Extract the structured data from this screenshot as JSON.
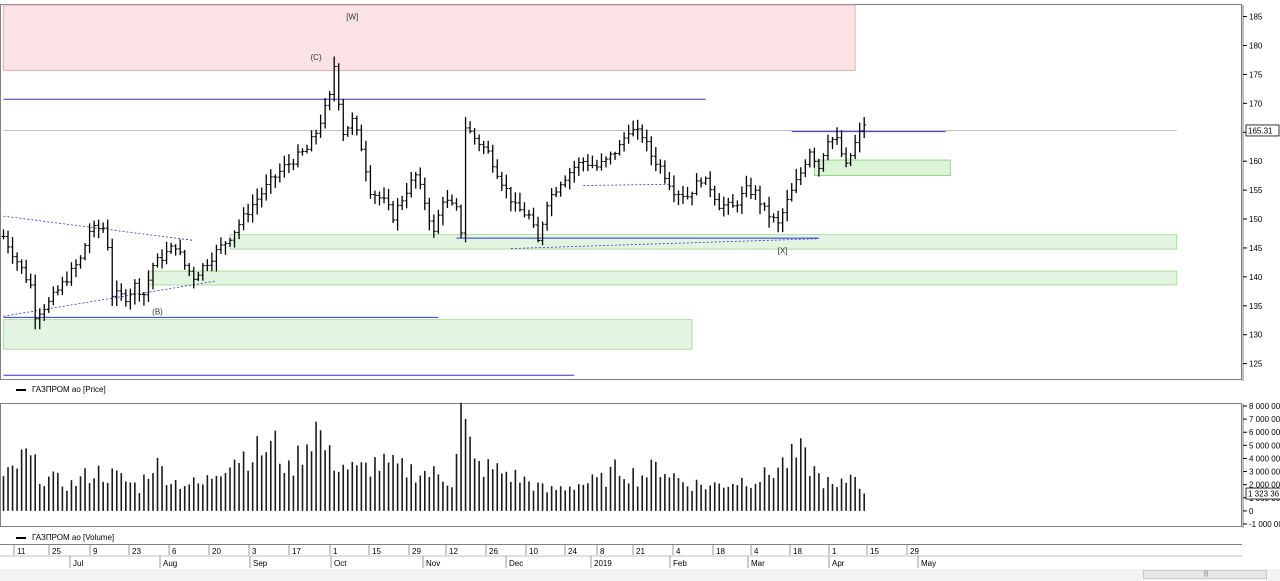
{
  "chart_data": [
    {
      "type": "ohlc",
      "series_name": "ГАЗПРОМ ао [Price]",
      "last_price_label": "165.31",
      "last_price": 165.31,
      "ylim": [
        122,
        187
      ],
      "y_ticks": [
        "185",
        "180",
        "175",
        "170",
        "165",
        "160",
        "155",
        "150",
        "145",
        "140",
        "135",
        "130",
        "125"
      ],
      "annotations": [
        {
          "label": "[W]",
          "bar": 77,
          "y": 184.5
        },
        {
          "label": "(C)",
          "bar": 69,
          "y": 177.5
        },
        {
          "label": "(B)",
          "bar": 34,
          "y": 133.5
        },
        {
          "label": "[X]",
          "bar": 172,
          "y": 144.0
        }
      ],
      "zones": [
        {
          "from_bar": 0,
          "to_bar": 188,
          "y1": 175.7,
          "y2": 187,
          "color": "#fbe3e5",
          "border": "#e39aa2"
        },
        {
          "from_bar": 50,
          "to_bar": 259,
          "y1": 144.8,
          "y2": 147.3,
          "color": "#e3f5e0",
          "border": "#9bd690"
        },
        {
          "from_bar": 32,
          "to_bar": 259,
          "y1": 138.6,
          "y2": 141.0,
          "color": "#e3f5e0",
          "border": "#9bd690"
        },
        {
          "from_bar": 0,
          "to_bar": 152,
          "y1": 127.5,
          "y2": 132.6,
          "color": "#e3f5e0",
          "border": "#9bd690"
        },
        {
          "from_bar": 179,
          "to_bar": 209,
          "y1": 157.5,
          "y2": 160.2,
          "color": "#dcf3d7",
          "border": "#7fcb74"
        }
      ],
      "hlines": [
        {
          "from_bar": 0,
          "to_bar": 155,
          "y": 170.7,
          "color": "#3333aa"
        },
        {
          "from_bar": 0,
          "to_bar": 96,
          "y": 133.0,
          "color": "#3333cc"
        },
        {
          "from_bar": 0,
          "to_bar": 126,
          "y": 123.0,
          "color": "#3333cc"
        },
        {
          "from_bar": 100,
          "to_bar": 180,
          "y": 146.7,
          "color": "#3333cc"
        },
        {
          "from_bar": 174,
          "to_bar": 208,
          "y": 165.1,
          "color": "#3333cc"
        },
        {
          "from_bar": 0,
          "to_bar": 259,
          "y": 165.31,
          "color": "#bfbfbf"
        }
      ],
      "trendlines": [
        {
          "from": [
            0,
            150.5
          ],
          "to": [
            42,
            146.3
          ]
        },
        {
          "from": [
            0,
            133.2
          ],
          "to": [
            47,
            139.3
          ]
        },
        {
          "from": [
            112,
            144.9
          ],
          "to": [
            180,
            146.6
          ]
        },
        {
          "from": [
            128,
            155.8
          ],
          "to": [
            147,
            156.0
          ]
        }
      ],
      "anchors": [
        [
          0,
          147.0
        ],
        [
          6,
          138.5
        ],
        [
          7,
          133.5
        ],
        [
          10,
          135.5
        ],
        [
          17,
          143.0
        ],
        [
          19,
          148.0
        ],
        [
          22,
          148.5
        ],
        [
          23,
          145.5
        ],
        [
          24,
          137.0
        ],
        [
          27,
          136.5
        ],
        [
          29,
          138.5
        ],
        [
          31,
          137.0
        ],
        [
          33,
          142.0
        ],
        [
          38,
          145.5
        ],
        [
          40,
          142.0
        ],
        [
          42,
          140.0
        ],
        [
          46,
          143.5
        ],
        [
          49,
          146.0
        ],
        [
          51,
          148.0
        ],
        [
          55,
          152.5
        ],
        [
          59,
          156.5
        ],
        [
          62,
          159.0
        ],
        [
          67,
          162.0
        ],
        [
          69,
          165.0
        ],
        [
          72,
          171.0
        ],
        [
          73,
          176.5
        ],
        [
          74,
          170.5
        ],
        [
          75,
          165.0
        ],
        [
          77,
          167.0
        ],
        [
          79,
          162.5
        ],
        [
          81,
          155.0
        ],
        [
          84,
          153.0
        ],
        [
          86,
          150.5
        ],
        [
          89,
          155.0
        ],
        [
          91,
          157.5
        ],
        [
          93,
          153.0
        ],
        [
          95,
          147.5
        ],
        [
          97,
          153.5
        ],
        [
          100,
          151.5
        ],
        [
          101,
          148.0
        ],
        [
          102,
          166.0
        ],
        [
          104,
          164.0
        ],
        [
          107,
          161.5
        ],
        [
          110,
          156.5
        ],
        [
          113,
          152.0
        ],
        [
          116,
          150.5
        ],
        [
          118,
          146.0
        ],
        [
          120,
          153.0
        ],
        [
          123,
          156.5
        ],
        [
          126,
          159.0
        ],
        [
          128,
          160.0
        ],
        [
          131,
          159.0
        ],
        [
          133,
          160.0
        ],
        [
          136,
          162.5
        ],
        [
          138,
          165.5
        ],
        [
          141,
          164.5
        ],
        [
          143,
          161.0
        ],
        [
          145,
          159.0
        ],
        [
          148,
          155.0
        ],
        [
          151,
          154.0
        ],
        [
          154,
          157.0
        ],
        [
          156,
          155.5
        ],
        [
          158,
          152.5
        ],
        [
          161,
          152.0
        ],
        [
          164,
          155.0
        ],
        [
          166,
          154.5
        ],
        [
          168,
          151.5
        ],
        [
          171,
          149.0
        ],
        [
          173,
          153.0
        ],
        [
          176,
          158.0
        ],
        [
          178,
          162.0
        ],
        [
          180,
          159.0
        ],
        [
          182,
          164.0
        ],
        [
          184,
          163.5
        ],
        [
          186,
          159.0
        ],
        [
          188,
          163.0
        ],
        [
          190,
          166.5
        ]
      ]
    },
    {
      "type": "bar",
      "series_name": "ГАЗПРОМ ао [Volume]",
      "last_volume_label": "1 323 36",
      "ylim": [
        -1000000,
        8000000
      ],
      "y_ticks": [
        "8 000 00",
        "7 000 00",
        "6 000 00",
        "5 000 00",
        "4 000 00",
        "3 000 00",
        "2 000 00",
        "1 000 00",
        "0",
        "-1 000 00"
      ],
      "volume_anchors": [
        [
          0,
          2300000
        ],
        [
          5,
          4200000
        ],
        [
          9,
          2500000
        ],
        [
          15,
          2000000
        ],
        [
          20,
          3000000
        ],
        [
          25,
          2600000
        ],
        [
          30,
          1800000
        ],
        [
          33,
          3700000
        ],
        [
          38,
          2200000
        ],
        [
          44,
          2000000
        ],
        [
          50,
          4100000
        ],
        [
          56,
          4500000
        ],
        [
          60,
          5000000
        ],
        [
          63,
          3000000
        ],
        [
          69,
          6500000
        ],
        [
          72,
          4000000
        ],
        [
          78,
          3000000
        ],
        [
          82,
          3600000
        ],
        [
          88,
          3200000
        ],
        [
          95,
          2800000
        ],
        [
          99,
          2300000
        ],
        [
          101,
          7600000
        ],
        [
          104,
          3500000
        ],
        [
          110,
          3000000
        ],
        [
          116,
          2200000
        ],
        [
          120,
          1500000
        ],
        [
          126,
          2000000
        ],
        [
          132,
          2300000
        ],
        [
          136,
          3300000
        ],
        [
          140,
          2600000
        ],
        [
          145,
          3400000
        ],
        [
          150,
          2200000
        ],
        [
          156,
          1900000
        ],
        [
          162,
          2300000
        ],
        [
          168,
          2600000
        ],
        [
          172,
          3600000
        ],
        [
          176,
          4300000
        ],
        [
          180,
          2600000
        ],
        [
          184,
          1600000
        ],
        [
          188,
          3100000
        ],
        [
          190,
          1323360
        ]
      ]
    }
  ],
  "legend": {
    "price": "ГАЗПРОМ ао [Price]",
    "volume": "ГАЗПРОМ ао [Volume]"
  },
  "time_axis": {
    "day_ticks": [
      "11",
      "25",
      "9",
      "23",
      "6",
      "20",
      "3",
      "17",
      "1",
      "15",
      "29",
      "12",
      "26",
      "10",
      "24",
      "8",
      "21",
      "4",
      "18",
      "4",
      "18",
      "1",
      "15",
      "29"
    ],
    "months": [
      "Jul",
      "Aug",
      "Sep",
      "Oct",
      "Nov",
      "Dec",
      "2019",
      "Feb",
      "Mar",
      "Apr",
      "May"
    ]
  },
  "colors": {
    "bars": "#000000",
    "volume_bars": "#1a1a1a"
  }
}
